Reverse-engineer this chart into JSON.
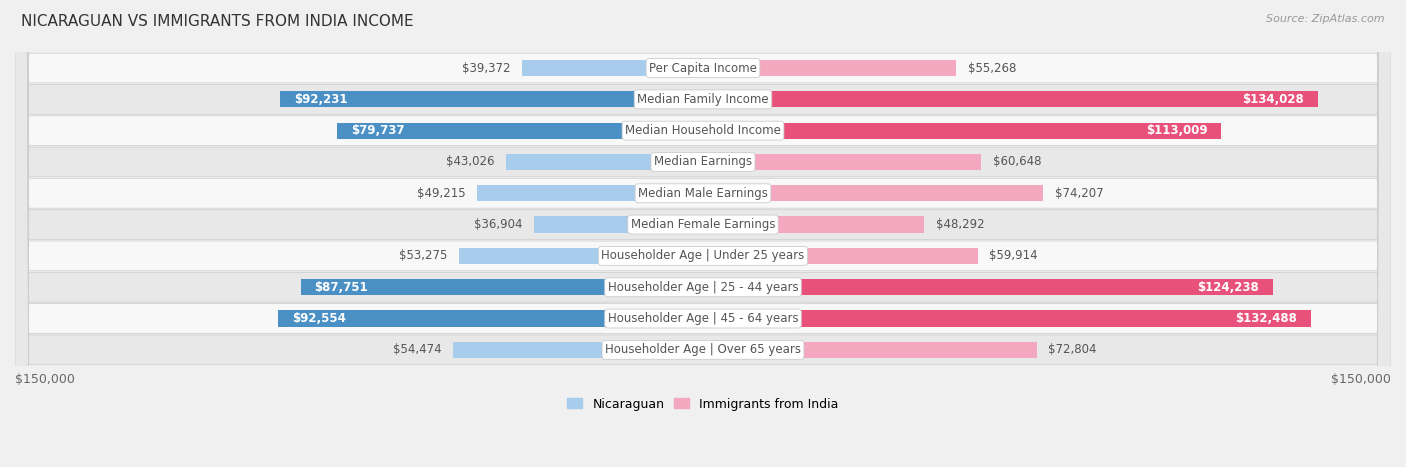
{
  "title": "NICARAGUAN VS IMMIGRANTS FROM INDIA INCOME",
  "source": "Source: ZipAtlas.com",
  "categories": [
    "Per Capita Income",
    "Median Family Income",
    "Median Household Income",
    "Median Earnings",
    "Median Male Earnings",
    "Median Female Earnings",
    "Householder Age | Under 25 years",
    "Householder Age | 25 - 44 years",
    "Householder Age | 45 - 64 years",
    "Householder Age | Over 65 years"
  ],
  "nicaraguan_values": [
    39372,
    92231,
    79737,
    43026,
    49215,
    36904,
    53275,
    87751,
    92554,
    54474
  ],
  "india_values": [
    55268,
    134028,
    113009,
    60648,
    74207,
    48292,
    59914,
    124238,
    132488,
    72804
  ],
  "nicaraguan_labels": [
    "$39,372",
    "$92,231",
    "$79,737",
    "$43,026",
    "$49,215",
    "$36,904",
    "$53,275",
    "$87,751",
    "$92,554",
    "$54,474"
  ],
  "india_labels": [
    "$55,268",
    "$134,028",
    "$113,009",
    "$60,648",
    "$74,207",
    "$48,292",
    "$59,914",
    "$124,238",
    "$132,488",
    "$72,804"
  ],
  "nicaraguan_color_light": "#a8cceb",
  "nicaraguan_color_dark": "#4a90c4",
  "india_color_light": "#f4a8c0",
  "india_color_dark": "#e8527a",
  "max_value": 150000,
  "bg_color": "#f0f0f0",
  "row_bg_light": "#f8f8f8",
  "row_bg_dark": "#e8e8e8",
  "label_fontsize": 8.5,
  "title_fontsize": 11,
  "legend_nicaraguan": "Nicaraguan",
  "legend_india": "Immigrants from India",
  "nic_threshold": 60000,
  "ind_threshold": 80000,
  "bottom_label": "$150,000"
}
